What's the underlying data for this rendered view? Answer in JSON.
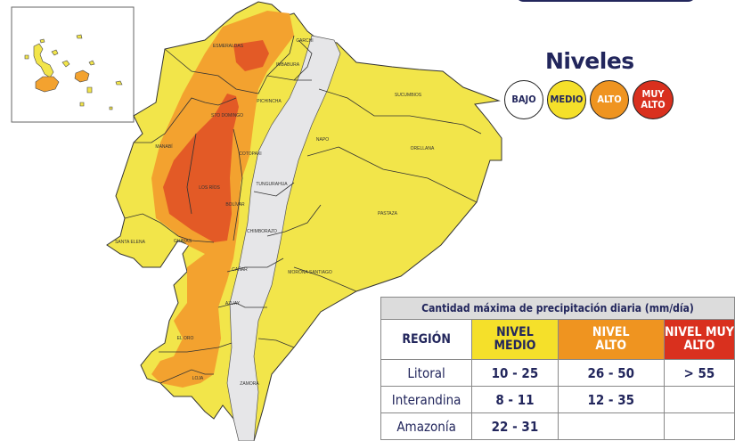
{
  "legend": {
    "title": "Niveles",
    "levels": [
      {
        "label": "BAJO",
        "color": "#ffffff"
      },
      {
        "label": "MEDIO",
        "color": "#f5e02a"
      },
      {
        "label": "ALTO",
        "color": "#ef9420"
      },
      {
        "label": "MUY ALTO",
        "color": "#d9301e"
      }
    ]
  },
  "map_colors": {
    "medio": "#f2e54a",
    "alto": "#f3a22f",
    "muy_alto": "#e35a26",
    "andes": "#e6e6e8",
    "border": "#333333"
  },
  "provinces": [
    "ESMERALDAS",
    "CARCHI",
    "IMBABURA",
    "SUCUMBIOS",
    "PICHINCHA",
    "STO DOMINGO",
    "NAPO",
    "ORELLANA",
    "MANABÍ",
    "COTOPAXI",
    "LOS RÍOS",
    "TUNGURAHUA",
    "BOLÍVAR",
    "PASTAZA",
    "CHIMBORAZO",
    "SANTA ELENA",
    "GUAYAS",
    "CAÑAR",
    "MORONA SANTIAGO",
    "AZUAY",
    "EL ORO",
    "LOJA",
    "ZAMORA"
  ],
  "table": {
    "caption": "Cantidad máxima de precipitación diaria (mm/día)",
    "headers": [
      "REGIÓN",
      "NIVEL MEDIO",
      "NIVEL ALTO",
      "NIVEL MUY ALTO"
    ],
    "rows": [
      [
        "Litoral",
        "10 - 25",
        "26 - 50",
        "> 55"
      ],
      [
        "Interandina",
        "8 - 11",
        "12 - 35",
        ""
      ],
      [
        "Amazonía",
        "22 - 31",
        "",
        ""
      ]
    ]
  }
}
